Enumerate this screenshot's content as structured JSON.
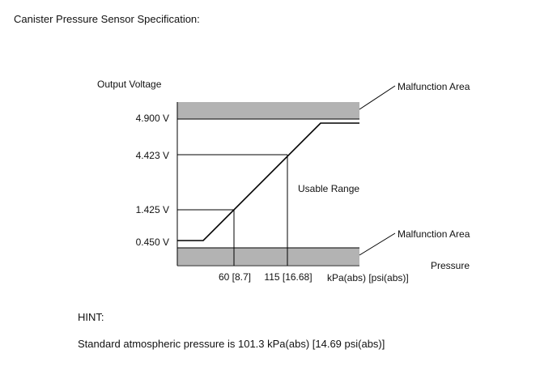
{
  "heading": "Canister Pressure Sensor Specification:",
  "diagram": {
    "y_axis_title": "Output Voltage",
    "x_axis_title": "Pressure",
    "x_unit_label": "kPa(abs) [psi(abs)]",
    "usable_range_label": "Usable Range",
    "upper_malfunction_label": "Malfunction Area",
    "lower_malfunction_label": "Malfunction Area",
    "voltage_labels": [
      "4.900 V",
      "4.423 V",
      "1.425 V",
      "0.450 V"
    ],
    "pressure_labels": [
      "60 [8.7]",
      "115 [16.68]"
    ],
    "colors": {
      "malfunction_band": "#b3b3b3",
      "line": "#000000"
    }
  },
  "hint": {
    "title": "HINT:",
    "text": "Standard atmospheric pressure is 101.3 kPa(abs) [14.69 psi(abs)]"
  }
}
